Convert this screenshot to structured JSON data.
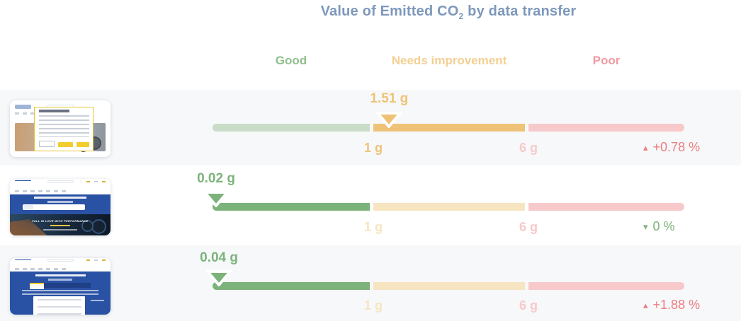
{
  "title": {
    "text_before_sub": "Value of Emitted CO",
    "subscript": "2",
    "text_after_sub": " by data transfer"
  },
  "colors": {
    "title": "#7d98bb",
    "row_alt_background": "#f7f8fa",
    "increase_pct": "#ee7d81",
    "decrease_pct": "#7cb37a"
  },
  "zones": [
    {
      "id": "good",
      "label": "Good",
      "label_color": "#90c08d",
      "active_color": "#7cb37a",
      "inactive_color": "#c8dcc7"
    },
    {
      "id": "needs_improvement",
      "label": "Needs improvement",
      "label_color": "#f3cf93",
      "active_color": "#eec377",
      "inactive_color": "#f7e4c1"
    },
    {
      "id": "poor",
      "label": "Poor",
      "label_color": "#f09aa1",
      "active_color": "#ef8d92",
      "inactive_color": "#f7c9ca"
    }
  ],
  "scale": {
    "tick1": "1 g",
    "tick2": "6 g",
    "tick1_value": 1,
    "tick2_value": 6
  },
  "rows": [
    {
      "value_label": "1.51 g",
      "value": 1.51,
      "zone": "needs_improvement",
      "change": {
        "direction": "up",
        "label": "+0.78 %",
        "color": "#ee7d81"
      },
      "thumbnail": "michelin-page-with-cookie-consent-dialog"
    },
    {
      "value_label": "0.02 g",
      "value": 0.02,
      "zone": "good",
      "change": {
        "direction": "down",
        "label": "0 %",
        "color": "#7cb37a"
      },
      "thumbnail": "michelin-homepage-hero",
      "thumbnail_caption": "FALL IN LOVE WITH PERFORMANCE"
    },
    {
      "value_label": "0.04 g",
      "value": 0.04,
      "zone": "good",
      "change": {
        "direction": "up",
        "label": "+1.88 %",
        "color": "#ee7d81"
      },
      "thumbnail": "michelin-page-with-dropdown-form"
    }
  ],
  "chart_data": {
    "type": "bullet-gauge",
    "title": "Value of Emitted CO2 by data transfer",
    "zone_labels": [
      "Good",
      "Needs improvement",
      "Poor"
    ],
    "thresholds_g": [
      1,
      6
    ],
    "unit": "g",
    "rows": [
      {
        "page": "cookie-consent-dialog-page",
        "co2_g": 1.51,
        "zone": "Needs improvement",
        "change_pct": "+0.78 %",
        "trend": "up"
      },
      {
        "page": "homepage-hero",
        "co2_g": 0.02,
        "zone": "Good",
        "change_pct": "0 %",
        "trend": "down"
      },
      {
        "page": "dropdown-form-page",
        "co2_g": 0.04,
        "zone": "Good",
        "change_pct": "+1.88 %",
        "trend": "up"
      }
    ]
  }
}
